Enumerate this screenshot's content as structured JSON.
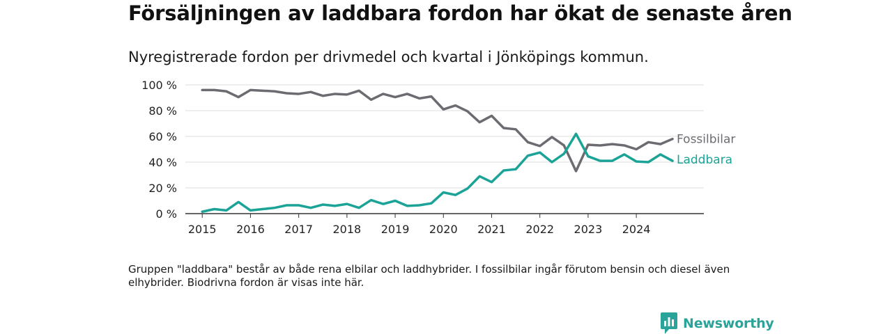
{
  "title": "Försäljningen av laddbara fordon har ökat de senaste åren",
  "subtitle": "Nyregistrerade fordon per drivmedel och kvartal i Jönköpings kommun.",
  "note": "Gruppen \"laddbara\" består av både rena elbilar och laddhybrider. I fossilbilar ingår förutom bensin och diesel även elhybrider. Biodrivna fordon är visas inte här.",
  "brand": {
    "name": "Newsworthy",
    "icon": "newsworthy-logo-icon"
  },
  "colors": {
    "fossil": "#6d6b71",
    "laddbara": "#1aa396",
    "grid": "#dcdcdc",
    "axis": "#333333",
    "brand": "#2aa39a"
  },
  "chart_data": {
    "type": "line",
    "title": "Försäljningen av laddbara fordon har ökat de senaste åren",
    "subtitle": "Nyregistrerade fordon per drivmedel och kvartal i Jönköpings kommun.",
    "xlabel": "",
    "ylabel": "",
    "x_start": 2015,
    "x_step": 0.25,
    "xlim": [
      2014.65,
      2025.4
    ],
    "ylim": [
      0,
      100
    ],
    "x_ticks": [
      {
        "value": 2015,
        "label": "2015"
      },
      {
        "value": 2016,
        "label": "2016"
      },
      {
        "value": 2017,
        "label": "2017"
      },
      {
        "value": 2018,
        "label": "2018"
      },
      {
        "value": 2019,
        "label": "2019"
      },
      {
        "value": 2020,
        "label": "2020"
      },
      {
        "value": 2021,
        "label": "2021"
      },
      {
        "value": 2022,
        "label": "2022"
      },
      {
        "value": 2023,
        "label": "2023"
      },
      {
        "value": 2024,
        "label": "2024"
      }
    ],
    "y_ticks": [
      {
        "value": 0,
        "label": "0 %"
      },
      {
        "value": 20,
        "label": "20 %"
      },
      {
        "value": 40,
        "label": "40 %"
      },
      {
        "value": 60,
        "label": "60 %"
      },
      {
        "value": 80,
        "label": "80 %"
      },
      {
        "value": 100,
        "label": "100 %"
      }
    ],
    "grid": true,
    "legend": "inline-right",
    "series": [
      {
        "name": "Fossilbilar",
        "label": "Fossilbilar",
        "color": "#6d6b71",
        "values": [
          96,
          96,
          95,
          90.5,
          96,
          95.5,
          95,
          93.5,
          93,
          94.5,
          91.5,
          93,
          92.5,
          95.5,
          88.5,
          93,
          90.5,
          93,
          89.5,
          91,
          81,
          84,
          79.5,
          71,
          76,
          66.5,
          65.5,
          55.5,
          52.5,
          59.5,
          53,
          33,
          53.5,
          53,
          54,
          53,
          50,
          55.5,
          54,
          58
        ]
      },
      {
        "name": "Laddbara",
        "label": "Laddbara",
        "color": "#1aa396",
        "values": [
          1.5,
          3.5,
          2.5,
          9,
          2.5,
          3.5,
          4.5,
          6.5,
          6.5,
          4.5,
          7,
          6,
          7.5,
          4.5,
          10.5,
          7.5,
          10,
          6,
          6.5,
          8,
          16.5,
          14.5,
          19.5,
          29,
          24.5,
          33.5,
          34.5,
          45,
          47.5,
          40,
          46.5,
          62,
          44.5,
          41,
          41,
          46,
          40.5,
          40,
          46,
          41
        ]
      }
    ]
  }
}
